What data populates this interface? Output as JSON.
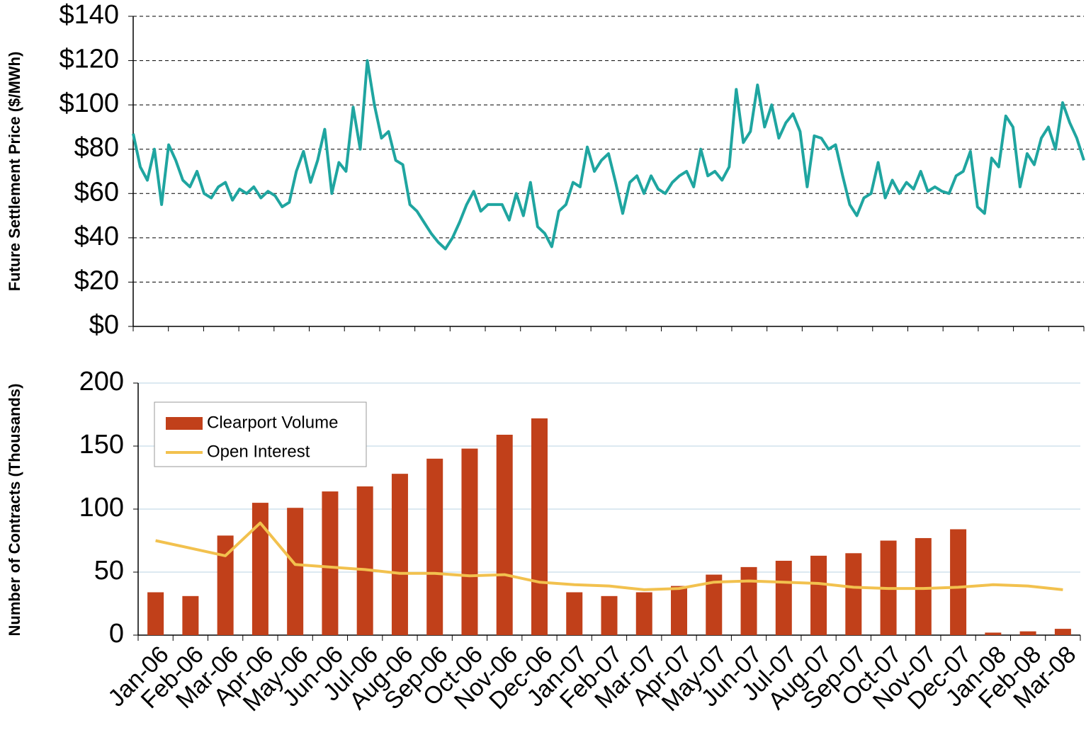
{
  "chart_data": [
    {
      "type": "line",
      "ylabel": "Future Settlement Price ($/MWh)",
      "color": "#1fa5a0",
      "grid": true,
      "ylim": [
        0,
        140
      ],
      "yticks": [
        {
          "value": 0,
          "label": "$0"
        },
        {
          "value": 20,
          "label": "$20"
        },
        {
          "value": 40,
          "label": "$40"
        },
        {
          "value": 60,
          "label": "$60"
        },
        {
          "value": 80,
          "label": "$80"
        },
        {
          "value": 100,
          "label": "$100"
        },
        {
          "value": 120,
          "label": "$120"
        },
        {
          "value": 140,
          "label": "$140"
        }
      ],
      "values": [
        87,
        72,
        66,
        80,
        55,
        82,
        75,
        66,
        63,
        70,
        60,
        58,
        63,
        65,
        57,
        62,
        60,
        63,
        58,
        61,
        59,
        54,
        56,
        70,
        79,
        65,
        75,
        89,
        60,
        74,
        70,
        99,
        80,
        120,
        100,
        85,
        88,
        75,
        73,
        55,
        52,
        47,
        42,
        38,
        35,
        40,
        47,
        55,
        61,
        52,
        55,
        55,
        55,
        48,
        60,
        50,
        65,
        45,
        42,
        36,
        52,
        55,
        65,
        63,
        81,
        70,
        75,
        78,
        65,
        51,
        65,
        68,
        60,
        68,
        62,
        60,
        65,
        68,
        70,
        63,
        80,
        68,
        70,
        66,
        72,
        107,
        83,
        88,
        109,
        90,
        100,
        85,
        92,
        96,
        88,
        63,
        86,
        85,
        80,
        82,
        68,
        55,
        50,
        58,
        60,
        74,
        58,
        66,
        60,
        65,
        62,
        70,
        61,
        63,
        61,
        60,
        68,
        70,
        79,
        54,
        51,
        76,
        72,
        95,
        90,
        63,
        78,
        73,
        85,
        90,
        80,
        101,
        92,
        85,
        75
      ]
    },
    {
      "type": "bar",
      "ylabel": "Number of Contracts (Thousands)",
      "grid": true,
      "legend": "upper-left",
      "ylim": [
        0,
        200
      ],
      "yticks": [
        0,
        50,
        100,
        150,
        200
      ],
      "categories": [
        "Jan-06",
        "Feb-06",
        "Mar-06",
        "Apr-06",
        "May-06",
        "Jun-06",
        "Jul-06",
        "Aug-06",
        "Sep-06",
        "Oct-06",
        "Nov-06",
        "Dec-06",
        "Jan-07",
        "Feb-07",
        "Mar-07",
        "Apr-07",
        "May-07",
        "Jun-07",
        "Jul-07",
        "Aug-07",
        "Sep-07",
        "Oct-07",
        "Nov-07",
        "Dec-07",
        "Jan-08",
        "Feb-08",
        "Mar-08"
      ],
      "series": [
        {
          "name": "Clearport Volume",
          "type": "bar",
          "color": "#c1401a",
          "values": [
            34,
            31,
            79,
            105,
            101,
            114,
            118,
            128,
            140,
            148,
            159,
            172,
            34,
            31,
            34,
            39,
            48,
            54,
            59,
            63,
            65,
            75,
            77,
            84,
            2,
            3,
            5
          ]
        },
        {
          "name": "Open Interest",
          "type": "line",
          "color": "#f2c14e",
          "values": [
            75,
            69,
            63,
            89,
            56,
            54,
            52,
            49,
            49,
            47,
            48,
            42,
            40,
            39,
            36,
            37,
            42,
            43,
            42,
            41,
            38,
            37,
            37,
            38,
            40,
            39,
            36
          ]
        }
      ]
    }
  ]
}
